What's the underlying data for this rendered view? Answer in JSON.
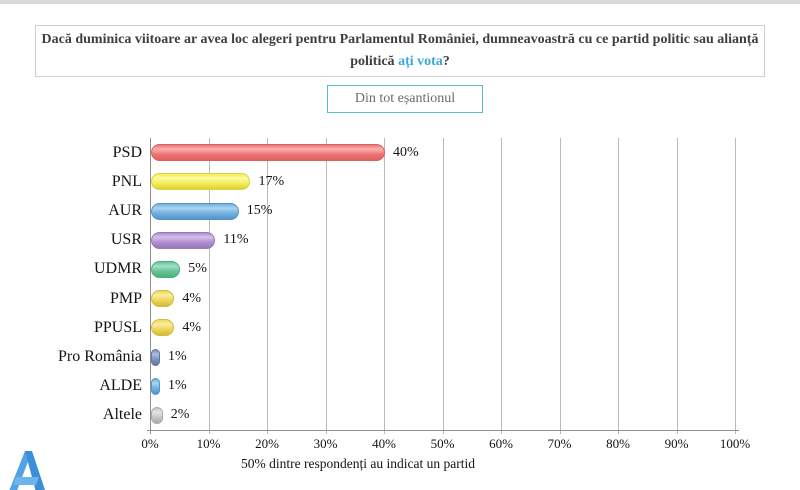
{
  "page": {
    "title": {
      "before": "Dacă duminica viitoare ar avea loc alegeri pentru Parlamentul României, dumneavoastră cu ce partid politic sau alianță politică ",
      "highlight": "ați vota",
      "after": "?"
    },
    "filter_button_label": "Din tot eșantionul",
    "logo": "avangarde-a-logo",
    "logo_color": "#3b8ed8"
  },
  "chart_data": {
    "type": "bar",
    "orientation": "horizontal",
    "categories": [
      "PSD",
      "PNL",
      "AUR",
      "USR",
      "UDMR",
      "PMP",
      "PPUSL",
      "Pro România",
      "ALDE",
      "Altele"
    ],
    "values": [
      40,
      17,
      15,
      11,
      5,
      4,
      4,
      1,
      1,
      2
    ],
    "value_labels": [
      "40%",
      "17%",
      "15%",
      "11%",
      "5%",
      "4%",
      "4%",
      "1%",
      "1%",
      "2%"
    ],
    "x_tick_labels": [
      "0%",
      "10%",
      "20%",
      "30%",
      "40%",
      "50%",
      "60%",
      "70%",
      "80%",
      "90%",
      "100%"
    ],
    "xlim": [
      0,
      100
    ],
    "grid": "vertical",
    "legend": "none",
    "caption": "50% dintre respondenți au indicat un partid",
    "bar_styles": [
      {
        "party": "PSD",
        "main": "#f07474",
        "light": "#f9b0b0",
        "dark": "#dd5f5f"
      },
      {
        "party": "PNL",
        "main": "#f4ef55",
        "light": "#fbf9a6",
        "dark": "#d9d33c"
      },
      {
        "party": "AUR",
        "main": "#6fb1e1",
        "light": "#aad3f0",
        "dark": "#5694c6"
      },
      {
        "party": "USR",
        "main": "#b28fd0",
        "light": "#d5c0e8",
        "dark": "#9878b6"
      },
      {
        "party": "UDMR",
        "main": "#66c597",
        "light": "#a5dfc5",
        "dark": "#4fae7e"
      },
      {
        "party": "PMP",
        "main": "#f0d655",
        "light": "#f8eda6",
        "dark": "#d6ba3c"
      },
      {
        "party": "PPUSL",
        "main": "#f0d655",
        "light": "#f8eda6",
        "dark": "#d6ba3c"
      },
      {
        "party": "Pro România",
        "main": "#7e92bd",
        "light": "#adbcd8",
        "dark": "#66789f"
      },
      {
        "party": "ALDE",
        "main": "#6fb1e1",
        "light": "#aad3f0",
        "dark": "#5694c6"
      },
      {
        "party": "Altele",
        "main": "#c7c7c7",
        "light": "#e6e6e6",
        "dark": "#ababab"
      }
    ]
  }
}
